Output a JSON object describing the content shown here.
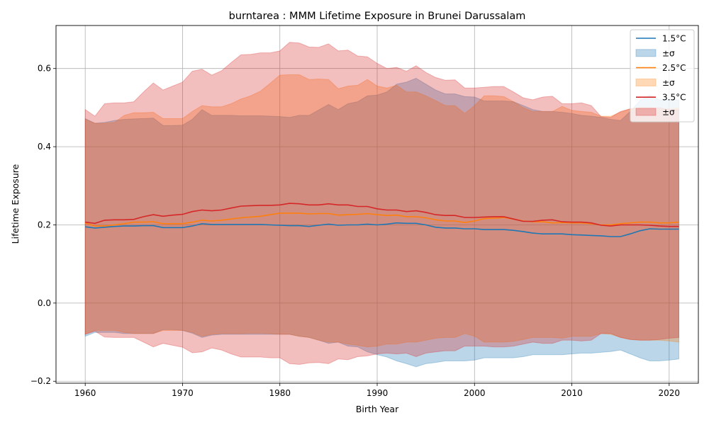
{
  "chart_data": {
    "type": "line",
    "title": "burntarea : MMM Lifetime Exposure in Brunei Darussalam",
    "xlabel": "Birth Year",
    "ylabel": "Lifetime Exposure",
    "xlim": [
      1957,
      2023
    ],
    "ylim": [
      -0.205,
      0.71
    ],
    "xticks": [
      1960,
      1970,
      1980,
      1990,
      2000,
      2010,
      2020
    ],
    "yticks": [
      -0.2,
      0.0,
      0.2,
      0.4,
      0.6
    ],
    "ytick_labels": [
      "−0.2",
      "0.0",
      "0.2",
      "0.4",
      "0.6"
    ],
    "grid": true,
    "legend_position": "top-right",
    "x_start": 1960,
    "series": [
      {
        "name": "1.5°C",
        "band_label": "±σ",
        "color": "#1f77b4",
        "band_alpha": 0.3,
        "mean": [
          0.195,
          0.192,
          0.194,
          0.196,
          0.197,
          0.197,
          0.198,
          0.198,
          0.193,
          0.193,
          0.193,
          0.197,
          0.203,
          0.201,
          0.201,
          0.201,
          0.201,
          0.201,
          0.201,
          0.2,
          0.199,
          0.198,
          0.198,
          0.196,
          0.199,
          0.202,
          0.199,
          0.2,
          0.2,
          0.202,
          0.2,
          0.202,
          0.205,
          0.204,
          0.204,
          0.2,
          0.194,
          0.192,
          0.192,
          0.19,
          0.19,
          0.188,
          0.188,
          0.188,
          0.186,
          0.183,
          0.179,
          0.177,
          0.177,
          0.177,
          0.175,
          0.174,
          0.173,
          0.172,
          0.17,
          0.17,
          0.177,
          0.185,
          0.19,
          0.189,
          0.189,
          0.189
        ],
        "upper": [
          0.472,
          0.46,
          0.462,
          0.467,
          0.47,
          0.471,
          0.472,
          0.473,
          0.454,
          0.454,
          0.455,
          0.47,
          0.495,
          0.48,
          0.48,
          0.48,
          0.479,
          0.479,
          0.479,
          0.478,
          0.477,
          0.475,
          0.48,
          0.48,
          0.494,
          0.508,
          0.495,
          0.51,
          0.515,
          0.53,
          0.532,
          0.54,
          0.56,
          0.565,
          0.575,
          0.56,
          0.545,
          0.535,
          0.535,
          0.528,
          0.527,
          0.517,
          0.517,
          0.517,
          0.515,
          0.505,
          0.495,
          0.49,
          0.49,
          0.488,
          0.485,
          0.48,
          0.478,
          0.475,
          0.47,
          0.467,
          0.49,
          0.518,
          0.532,
          0.52,
          0.52,
          0.52
        ],
        "lower": [
          -0.085,
          -0.075,
          -0.075,
          -0.075,
          -0.078,
          -0.078,
          -0.078,
          -0.078,
          -0.068,
          -0.068,
          -0.07,
          -0.077,
          -0.088,
          -0.082,
          -0.08,
          -0.08,
          -0.08,
          -0.08,
          -0.08,
          -0.08,
          -0.08,
          -0.08,
          -0.085,
          -0.088,
          -0.095,
          -0.103,
          -0.1,
          -0.11,
          -0.112,
          -0.125,
          -0.132,
          -0.138,
          -0.148,
          -0.155,
          -0.163,
          -0.155,
          -0.152,
          -0.148,
          -0.148,
          -0.148,
          -0.146,
          -0.14,
          -0.14,
          -0.14,
          -0.14,
          -0.137,
          -0.132,
          -0.132,
          -0.132,
          -0.132,
          -0.13,
          -0.128,
          -0.128,
          -0.126,
          -0.124,
          -0.12,
          -0.13,
          -0.14,
          -0.148,
          -0.148,
          -0.146,
          -0.143
        ]
      },
      {
        "name": "2.5°C",
        "band_label": "±σ",
        "color": "#ff7f0e",
        "band_alpha": 0.3,
        "mean": [
          0.205,
          0.197,
          0.197,
          0.2,
          0.203,
          0.207,
          0.207,
          0.208,
          0.203,
          0.203,
          0.203,
          0.207,
          0.212,
          0.21,
          0.212,
          0.215,
          0.218,
          0.22,
          0.222,
          0.226,
          0.23,
          0.23,
          0.23,
          0.228,
          0.229,
          0.229,
          0.225,
          0.226,
          0.227,
          0.229,
          0.226,
          0.224,
          0.225,
          0.221,
          0.221,
          0.218,
          0.213,
          0.21,
          0.21,
          0.206,
          0.21,
          0.216,
          0.217,
          0.219,
          0.215,
          0.21,
          0.208,
          0.208,
          0.205,
          0.206,
          0.205,
          0.205,
          0.203,
          0.2,
          0.2,
          0.203,
          0.205,
          0.207,
          0.207,
          0.205,
          0.205,
          0.207
        ],
        "upper": [
          0.47,
          0.46,
          0.46,
          0.462,
          0.48,
          0.487,
          0.487,
          0.488,
          0.472,
          0.472,
          0.472,
          0.49,
          0.505,
          0.502,
          0.502,
          0.51,
          0.522,
          0.53,
          0.542,
          0.562,
          0.583,
          0.584,
          0.584,
          0.572,
          0.573,
          0.572,
          0.548,
          0.555,
          0.557,
          0.572,
          0.555,
          0.55,
          0.557,
          0.54,
          0.54,
          0.53,
          0.518,
          0.505,
          0.505,
          0.485,
          0.505,
          0.53,
          0.53,
          0.528,
          0.515,
          0.5,
          0.49,
          0.49,
          0.49,
          0.503,
          0.493,
          0.49,
          0.488,
          0.478,
          0.478,
          0.488,
          0.497,
          0.5,
          0.5,
          0.497,
          0.497,
          0.5
        ],
        "lower": [
          -0.08,
          -0.07,
          -0.07,
          -0.07,
          -0.075,
          -0.078,
          -0.078,
          -0.078,
          -0.07,
          -0.07,
          -0.07,
          -0.075,
          -0.085,
          -0.08,
          -0.078,
          -0.078,
          -0.078,
          -0.077,
          -0.077,
          -0.078,
          -0.08,
          -0.08,
          -0.085,
          -0.088,
          -0.095,
          -0.1,
          -0.1,
          -0.105,
          -0.108,
          -0.112,
          -0.11,
          -0.105,
          -0.105,
          -0.1,
          -0.1,
          -0.095,
          -0.09,
          -0.088,
          -0.088,
          -0.078,
          -0.085,
          -0.1,
          -0.1,
          -0.1,
          -0.098,
          -0.093,
          -0.088,
          -0.088,
          -0.088,
          -0.09,
          -0.085,
          -0.085,
          -0.085,
          -0.078,
          -0.08,
          -0.088,
          -0.093,
          -0.095,
          -0.095,
          -0.095,
          -0.097,
          -0.1
        ]
      },
      {
        "name": "3.5°C",
        "band_label": "±σ",
        "color": "#d62728",
        "band_alpha": 0.3,
        "mean": [
          0.207,
          0.204,
          0.212,
          0.213,
          0.213,
          0.214,
          0.221,
          0.226,
          0.222,
          0.225,
          0.227,
          0.234,
          0.238,
          0.236,
          0.238,
          0.243,
          0.248,
          0.249,
          0.25,
          0.25,
          0.251,
          0.255,
          0.254,
          0.251,
          0.251,
          0.254,
          0.251,
          0.251,
          0.247,
          0.247,
          0.241,
          0.238,
          0.238,
          0.234,
          0.236,
          0.232,
          0.226,
          0.224,
          0.224,
          0.219,
          0.219,
          0.22,
          0.221,
          0.221,
          0.215,
          0.209,
          0.209,
          0.212,
          0.213,
          0.208,
          0.207,
          0.207,
          0.205,
          0.199,
          0.197,
          0.2,
          0.2,
          0.2,
          0.199,
          0.197,
          0.196,
          0.196
        ],
        "upper": [
          0.495,
          0.478,
          0.51,
          0.512,
          0.512,
          0.515,
          0.54,
          0.563,
          0.545,
          0.555,
          0.565,
          0.593,
          0.598,
          0.583,
          0.594,
          0.615,
          0.635,
          0.636,
          0.64,
          0.64,
          0.645,
          0.667,
          0.665,
          0.655,
          0.654,
          0.663,
          0.645,
          0.647,
          0.632,
          0.63,
          0.613,
          0.6,
          0.603,
          0.593,
          0.607,
          0.59,
          0.577,
          0.57,
          0.571,
          0.55,
          0.55,
          0.552,
          0.554,
          0.554,
          0.54,
          0.525,
          0.52,
          0.527,
          0.529,
          0.51,
          0.51,
          0.512,
          0.505,
          0.477,
          0.475,
          0.49,
          0.497,
          0.5,
          0.5,
          0.5,
          0.495,
          0.495
        ],
        "lower": [
          -0.08,
          -0.072,
          -0.087,
          -0.088,
          -0.088,
          -0.088,
          -0.1,
          -0.112,
          -0.103,
          -0.108,
          -0.113,
          -0.127,
          -0.125,
          -0.115,
          -0.12,
          -0.13,
          -0.138,
          -0.138,
          -0.138,
          -0.14,
          -0.14,
          -0.155,
          -0.157,
          -0.153,
          -0.152,
          -0.155,
          -0.143,
          -0.145,
          -0.137,
          -0.135,
          -0.13,
          -0.128,
          -0.13,
          -0.128,
          -0.137,
          -0.128,
          -0.125,
          -0.122,
          -0.122,
          -0.11,
          -0.11,
          -0.11,
          -0.112,
          -0.112,
          -0.11,
          -0.105,
          -0.1,
          -0.103,
          -0.103,
          -0.095,
          -0.095,
          -0.097,
          -0.095,
          -0.078,
          -0.078,
          -0.088,
          -0.093,
          -0.095,
          -0.095,
          -0.093,
          -0.09,
          -0.088
        ]
      }
    ]
  }
}
